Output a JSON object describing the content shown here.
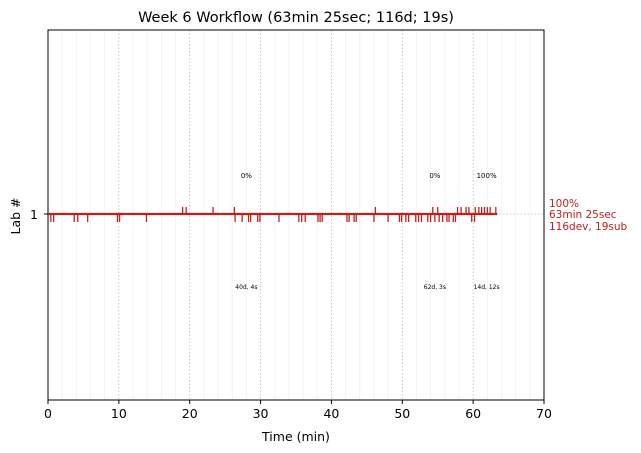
{
  "chart_data": {
    "type": "timeline",
    "title": "Week 6 Workflow (63min 25sec; 116d; 19s)",
    "xlabel": "Time (min)",
    "ylabel": "Lab #",
    "xlim": [
      0,
      70
    ],
    "x_ticks": [
      "0",
      "10",
      "20",
      "30",
      "40",
      "50",
      "60",
      "70"
    ],
    "y_tick": {
      "value": 1,
      "label": "1"
    },
    "grid": "x-major dotted, x-minor faint",
    "series_color": "#c0201c",
    "lab_line": {
      "lab": 1,
      "start": 0.0,
      "end": 63.4
    },
    "marks_above": [
      19.0,
      19.5,
      23.3,
      26.3,
      46.2,
      54.3,
      55.0,
      57.8,
      58.3,
      59.0,
      59.4,
      60.3,
      60.8,
      61.2,
      61.6,
      62.0,
      62.4,
      63.2
    ],
    "marks_below": [
      0.4,
      0.8,
      3.7,
      4.2,
      5.6,
      9.8,
      10.1,
      13.9,
      26.4,
      27.4,
      28.3,
      28.6,
      29.6,
      29.9,
      32.6,
      35.4,
      35.8,
      36.3,
      38.1,
      38.4,
      38.7,
      42.2,
      42.5,
      43.2,
      43.5,
      46.0,
      48.0,
      49.6,
      49.9,
      50.5,
      50.9,
      51.9,
      52.3,
      52.7,
      53.6,
      54.0,
      54.6,
      55.2,
      55.7,
      56.3,
      56.6,
      57.2,
      57.5,
      59.8,
      60.2
    ],
    "stage_annotations": [
      {
        "x": 28.0,
        "top": "0%",
        "bottom": "40d, 4s"
      },
      {
        "x": 54.6,
        "top": "0%",
        "bottom": "62d, 3s"
      },
      {
        "x": 61.9,
        "top": "100%",
        "bottom": "14d, 12s"
      }
    ],
    "summary": [
      "100%",
      "63min 25sec",
      "116dev, 19sub"
    ]
  }
}
